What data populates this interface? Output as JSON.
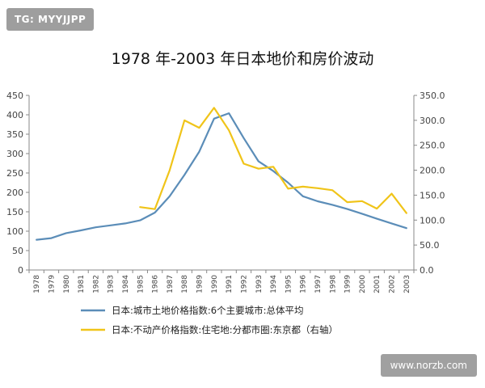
{
  "watermark": {
    "text": "TG: MYYJJPP"
  },
  "site_badge": {
    "text": "www.norzb.com"
  },
  "chart_data": {
    "type": "line",
    "title": "1978 年-2003 年日本地价和房价波动",
    "x": [
      1978,
      1979,
      1980,
      1981,
      1982,
      1983,
      1984,
      1985,
      1986,
      1987,
      1988,
      1989,
      1990,
      1991,
      1992,
      1993,
      1994,
      1995,
      1996,
      1997,
      1998,
      1999,
      2000,
      2001,
      2002,
      2003
    ],
    "x_tick_labels": [
      "1978",
      "1979",
      "1980",
      "1981",
      "1982",
      "1983",
      "1984",
      "1985",
      "1986",
      "1987",
      "1988",
      "1989",
      "1990",
      "1991",
      "1992",
      "1993",
      "1994",
      "1995",
      "1996",
      "1997",
      "1998",
      "1999",
      "2000",
      "2001",
      "2002",
      "2003"
    ],
    "ylim": [
      0,
      450
    ],
    "y_ticks": [
      "0",
      "50",
      "100",
      "150",
      "200",
      "250",
      "300",
      "350",
      "400",
      "450"
    ],
    "y2lim": [
      0,
      350
    ],
    "y2_ticks": [
      "0.0",
      "50.0",
      "100.0",
      "150.0",
      "200.0",
      "250.0",
      "300.0",
      "350.0"
    ],
    "grid": false,
    "legend_position": "bottom",
    "series": [
      {
        "name": "日本:城市土地价格指数:6个主要城市:总体平均",
        "axis": "left",
        "color": "#5b8db8",
        "values": [
          78,
          82,
          95,
          102,
          110,
          115,
          120,
          128,
          148,
          190,
          245,
          305,
          390,
          404,
          340,
          280,
          255,
          225,
          190,
          177,
          168,
          157,
          145,
          132,
          120,
          108
        ]
      },
      {
        "name": "日本:不动产价格指数:住宅地:分都市圈:东京都（右轴）",
        "axis": "right",
        "color": "#f0c419",
        "values": [
          null,
          null,
          null,
          null,
          null,
          null,
          null,
          126,
          122,
          200,
          300,
          285,
          325,
          280,
          213,
          203,
          207,
          163,
          167,
          164,
          160,
          136,
          138,
          123,
          153,
          114
        ]
      }
    ]
  }
}
